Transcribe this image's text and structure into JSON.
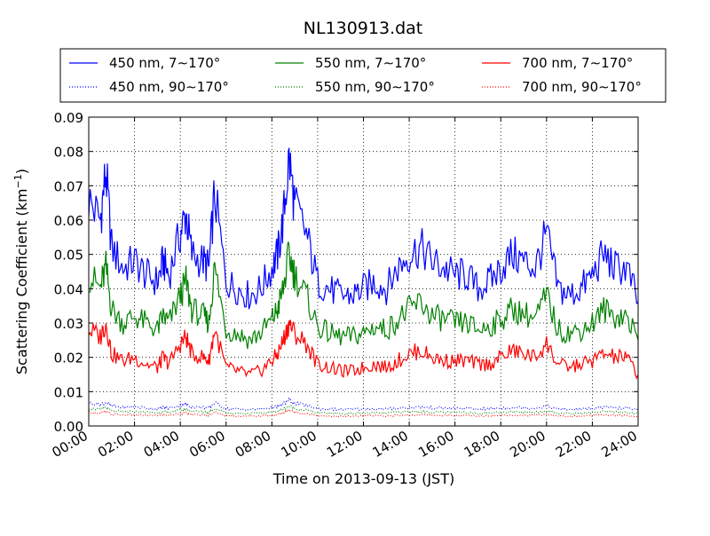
{
  "chart_data": {
    "type": "line",
    "title": "NL130913.dat",
    "xlabel": "Time on 2013-09-13 (JST)",
    "ylabel": "Scattering Coefficient (km",
    "ylabel_sup": "−1",
    "ylabel_end": ")",
    "x_unit": "hours (00:00–24:00)",
    "xlim": [
      0,
      24
    ],
    "ylim": [
      0,
      0.09
    ],
    "grid": true,
    "legend_position": "top (above plot)",
    "x_ticks": [
      "00:00",
      "02:00",
      "04:00",
      "06:00",
      "08:00",
      "10:00",
      "12:00",
      "14:00",
      "16:00",
      "18:00",
      "20:00",
      "22:00",
      "24:00"
    ],
    "y_ticks": [
      "0.00",
      "0.01",
      "0.02",
      "0.03",
      "0.04",
      "0.05",
      "0.06",
      "0.07",
      "0.08",
      "0.09"
    ],
    "x_hours": [
      0,
      0.5,
      0.75,
      1,
      1.5,
      2,
      2.5,
      3,
      3.25,
      3.5,
      4,
      4.25,
      4.5,
      5,
      5.25,
      5.5,
      6,
      6.5,
      7,
      7.5,
      8,
      8.25,
      8.5,
      8.75,
      9,
      9.5,
      10,
      10.5,
      11,
      11.5,
      12,
      12.5,
      13,
      13.5,
      14,
      14.5,
      15,
      15.5,
      16,
      16.5,
      17,
      17.5,
      18,
      18.5,
      19,
      19.5,
      20,
      20.5,
      21,
      21.5,
      22,
      22.5,
      23,
      23.5,
      24
    ],
    "series": [
      {
        "name": "450 nm, 7∼170°",
        "color": "#0000ff",
        "style": "solid",
        "values": [
          0.066,
          0.06,
          0.074,
          0.052,
          0.046,
          0.048,
          0.044,
          0.042,
          0.048,
          0.044,
          0.056,
          0.062,
          0.05,
          0.048,
          0.046,
          0.068,
          0.042,
          0.04,
          0.038,
          0.04,
          0.046,
          0.05,
          0.06,
          0.078,
          0.064,
          0.056,
          0.042,
          0.04,
          0.038,
          0.038,
          0.04,
          0.042,
          0.04,
          0.046,
          0.05,
          0.052,
          0.048,
          0.046,
          0.044,
          0.044,
          0.04,
          0.042,
          0.046,
          0.05,
          0.048,
          0.046,
          0.056,
          0.04,
          0.038,
          0.04,
          0.044,
          0.05,
          0.046,
          0.046,
          0.036
        ]
      },
      {
        "name": "550 nm, 7∼170°",
        "color": "#008000",
        "style": "solid",
        "values": [
          0.044,
          0.04,
          0.046,
          0.034,
          0.03,
          0.032,
          0.03,
          0.028,
          0.032,
          0.03,
          0.038,
          0.042,
          0.034,
          0.032,
          0.03,
          0.046,
          0.028,
          0.027,
          0.025,
          0.027,
          0.031,
          0.034,
          0.04,
          0.05,
          0.044,
          0.038,
          0.029,
          0.027,
          0.026,
          0.026,
          0.027,
          0.029,
          0.028,
          0.031,
          0.034,
          0.036,
          0.032,
          0.031,
          0.03,
          0.03,
          0.028,
          0.029,
          0.031,
          0.034,
          0.033,
          0.031,
          0.038,
          0.028,
          0.027,
          0.028,
          0.03,
          0.034,
          0.032,
          0.032,
          0.025
        ]
      },
      {
        "name": "700 nm, 7∼170°",
        "color": "#ff0000",
        "style": "solid",
        "values": [
          0.028,
          0.026,
          0.03,
          0.021,
          0.019,
          0.02,
          0.018,
          0.017,
          0.02,
          0.018,
          0.024,
          0.026,
          0.021,
          0.02,
          0.019,
          0.028,
          0.017,
          0.016,
          0.015,
          0.016,
          0.019,
          0.021,
          0.025,
          0.03,
          0.027,
          0.024,
          0.018,
          0.017,
          0.016,
          0.016,
          0.017,
          0.018,
          0.017,
          0.019,
          0.021,
          0.022,
          0.02,
          0.019,
          0.019,
          0.019,
          0.018,
          0.018,
          0.02,
          0.022,
          0.021,
          0.02,
          0.024,
          0.018,
          0.017,
          0.018,
          0.019,
          0.021,
          0.02,
          0.02,
          0.015
        ]
      },
      {
        "name": "450 nm, 90∼170°",
        "color": "#0000ff",
        "style": "dotted",
        "values": [
          0.0068,
          0.0062,
          0.007,
          0.0058,
          0.0054,
          0.0056,
          0.0052,
          0.005,
          0.0054,
          0.0052,
          0.006,
          0.0064,
          0.0056,
          0.0054,
          0.0052,
          0.0068,
          0.005,
          0.0049,
          0.0048,
          0.0049,
          0.0054,
          0.0056,
          0.0064,
          0.0074,
          0.0066,
          0.006,
          0.005,
          0.0049,
          0.0048,
          0.0048,
          0.0049,
          0.005,
          0.0049,
          0.0052,
          0.0054,
          0.0055,
          0.0053,
          0.0052,
          0.0051,
          0.0051,
          0.0049,
          0.005,
          0.0052,
          0.0054,
          0.0053,
          0.0052,
          0.0058,
          0.0049,
          0.0048,
          0.0049,
          0.0051,
          0.0054,
          0.0052,
          0.0052,
          0.0046
        ]
      },
      {
        "name": "550 nm, 90∼170°",
        "color": "#008000",
        "style": "dotted",
        "values": [
          0.0052,
          0.0048,
          0.0054,
          0.0044,
          0.0041,
          0.0042,
          0.004,
          0.0038,
          0.0041,
          0.004,
          0.0046,
          0.0049,
          0.0043,
          0.0041,
          0.004,
          0.0052,
          0.0038,
          0.0037,
          0.0036,
          0.0037,
          0.0041,
          0.0043,
          0.0049,
          0.0058,
          0.0051,
          0.0046,
          0.0038,
          0.0037,
          0.0036,
          0.0036,
          0.0037,
          0.0038,
          0.0037,
          0.004,
          0.0041,
          0.0042,
          0.004,
          0.004,
          0.0039,
          0.0039,
          0.0037,
          0.0038,
          0.004,
          0.0041,
          0.004,
          0.004,
          0.0044,
          0.0037,
          0.0036,
          0.0037,
          0.0039,
          0.0041,
          0.004,
          0.004,
          0.0034
        ]
      },
      {
        "name": "700 nm, 90∼170°",
        "color": "#ff0000",
        "style": "dotted",
        "values": [
          0.004,
          0.0037,
          0.0042,
          0.0034,
          0.0032,
          0.0033,
          0.0031,
          0.003,
          0.0032,
          0.0031,
          0.0036,
          0.0038,
          0.0033,
          0.0032,
          0.0031,
          0.004,
          0.003,
          0.0029,
          0.0028,
          0.0029,
          0.0032,
          0.0033,
          0.0038,
          0.0046,
          0.004,
          0.0036,
          0.003,
          0.0029,
          0.0028,
          0.0028,
          0.0029,
          0.003,
          0.0029,
          0.0031,
          0.0032,
          0.0033,
          0.0031,
          0.0031,
          0.003,
          0.003,
          0.0029,
          0.003,
          0.0031,
          0.0032,
          0.0031,
          0.0031,
          0.0034,
          0.0029,
          0.0028,
          0.0029,
          0.003,
          0.0032,
          0.0031,
          0.0031,
          0.0026
        ]
      }
    ]
  }
}
